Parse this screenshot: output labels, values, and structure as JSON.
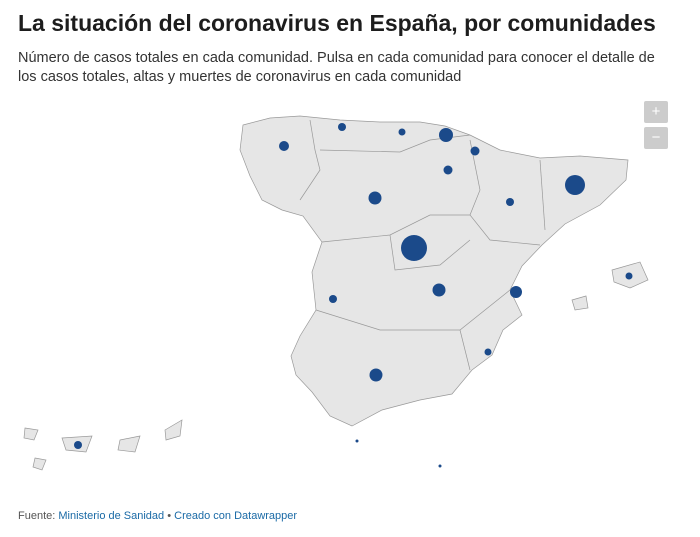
{
  "header": {
    "title": "La situación del coronavirus en España, por comunidades",
    "subtitle": "Número de casos totales en cada comunidad. Pulsa en cada comunidad para conocer el detalle de los casos totales, altas y muertes de coronavirus en cada comunidad"
  },
  "controls": {
    "zoom_in": "+",
    "zoom_out": "−"
  },
  "footer": {
    "source_label": "Fuente:",
    "source": "Ministerio de Sanidad",
    "separator": "•",
    "credit": "Creado con Datawrapper"
  }
}
